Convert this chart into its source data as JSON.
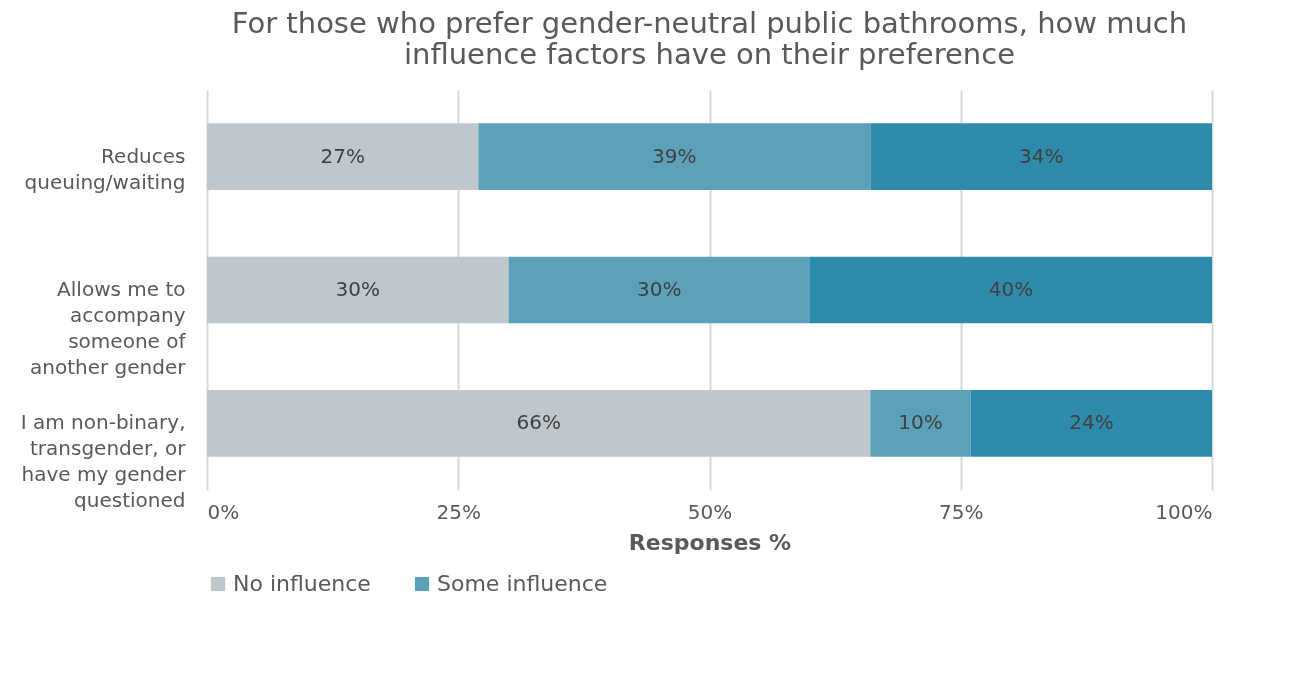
{
  "chart_data": {
    "type": "bar",
    "orientation": "horizontal",
    "stacked": true,
    "title": "For those who prefer gender-neutral public bathrooms, how much influence factors have on their preference",
    "categories": [
      "Reduces queuing/waiting",
      "Allows me to accompany someone of another gender",
      "I am non-binary, transgender, or have my gender questioned"
    ],
    "series": [
      {
        "name": "No influence",
        "color": "#bfc6cc",
        "values": [
          27,
          30,
          66
        ],
        "value_labels": [
          "27%",
          "30%",
          "66%"
        ]
      },
      {
        "name": "Some influence",
        "color": "#5ba1b9",
        "values": [
          39,
          30,
          10
        ],
        "value_labels": [
          "39%",
          "30%",
          "10%"
        ]
      },
      {
        "color": "#2f8bab",
        "values": [
          34,
          40,
          24
        ],
        "value_labels": [
          "34%",
          "40%",
          "24%"
        ]
      }
    ],
    "xlim": [
      0,
      100
    ],
    "xticks": [
      {
        "value": 0,
        "label": "0%"
      },
      {
        "value": 25,
        "label": "25%"
      },
      {
        "value": 50,
        "label": "50%"
      },
      {
        "value": 75,
        "label": "75%"
      },
      {
        "value": 100,
        "label": "100%"
      }
    ],
    "xlabel": "Responses %",
    "grid": "x",
    "legend": "bottom"
  }
}
